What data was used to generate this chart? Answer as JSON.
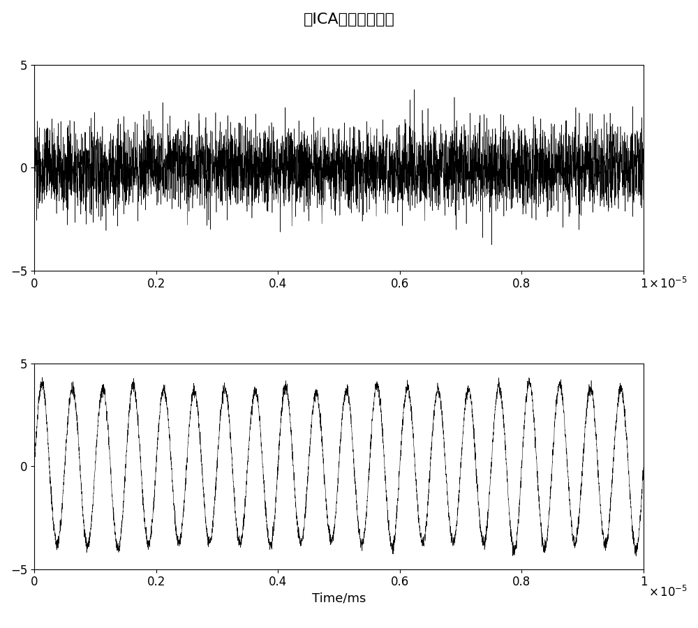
{
  "title": "经ICA分离后的信号",
  "xlabel": "Time/ms",
  "xlim": [
    0,
    1e-05
  ],
  "ylim": [
    -5,
    5
  ],
  "yticks": [
    -5,
    0,
    5
  ],
  "xticks": [
    0,
    2e-06,
    4e-06,
    6e-06,
    8e-06,
    1e-05
  ],
  "xticklabels": [
    "0",
    "0.2",
    "0.4",
    "0.6",
    "0.8",
    "1"
  ],
  "n_samples": 5000,
  "signal1_noise_amp": 1.0,
  "signal1_freq": 800000,
  "signal1_sine_amp": 0.5,
  "signal2_freq": 2000000,
  "signal2_amp": 3.8,
  "signal2_noise_amp": 0.15,
  "line_color": "#000000",
  "bg_color": "#ffffff",
  "title_fontsize": 16,
  "label_fontsize": 13,
  "tick_fontsize": 12
}
